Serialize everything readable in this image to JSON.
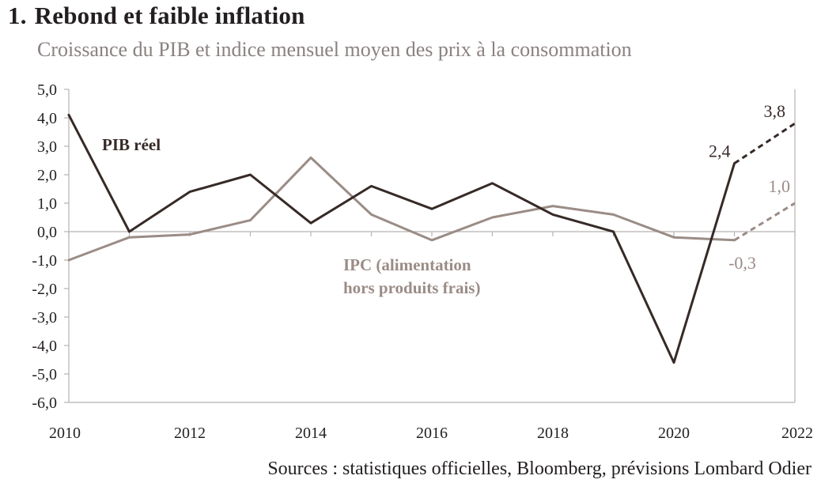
{
  "header": {
    "number": "1.",
    "title": "Rebond et faible inflation",
    "subtitle": "Croissance du PIB et indice mensuel moyen des prix à la consommation"
  },
  "source": "Sources : statistiques officielles, Bloomberg, prévisions Lombard Odier",
  "colors": {
    "pib": "#362a27",
    "ipc": "#9a8c86",
    "axis": "#b8b2b0",
    "text": "#231f20"
  },
  "chart_data": {
    "type": "line",
    "ylim": [
      -6,
      5
    ],
    "xlim": [
      2010,
      2022
    ],
    "y_ticks": [
      "5,0",
      "4,0",
      "3,0",
      "2,0",
      "1,0",
      "0,0",
      "-1,0",
      "-2,0",
      "-3,0",
      "-4,0",
      "-5,0",
      "-6,0"
    ],
    "y_tick_values": [
      5,
      4,
      3,
      2,
      1,
      0,
      -1,
      -2,
      -3,
      -4,
      -5,
      -6
    ],
    "x_ticks": [
      "2010",
      "2012",
      "2014",
      "2016",
      "2018",
      "2020",
      "2022"
    ],
    "x_tick_values": [
      2010,
      2012,
      2014,
      2016,
      2018,
      2020,
      2022
    ],
    "grid": false,
    "series": [
      {
        "name": "PIB réel",
        "color": "#362a27",
        "x": [
          2010,
          2011,
          2012,
          2013,
          2014,
          2015,
          2016,
          2017,
          2018,
          2019,
          2020,
          2021
        ],
        "values": [
          4.1,
          0.0,
          1.4,
          2.0,
          0.3,
          1.6,
          0.8,
          1.7,
          0.6,
          0.0,
          -4.6,
          2.4
        ],
        "forecast": {
          "x": [
            2021,
            2022
          ],
          "values": [
            2.4,
            3.8
          ]
        }
      },
      {
        "name": "IPC (alimentation hors produits frais)",
        "name_lines": [
          "IPC (alimentation",
          "hors produits frais)"
        ],
        "color": "#9a8c86",
        "x": [
          2010,
          2011,
          2012,
          2013,
          2014,
          2015,
          2016,
          2017,
          2018,
          2019,
          2020,
          2021
        ],
        "values": [
          -1.0,
          -0.2,
          -0.1,
          0.4,
          2.6,
          0.6,
          -0.3,
          0.5,
          0.9,
          0.6,
          -0.2,
          -0.3
        ],
        "forecast": {
          "x": [
            2021,
            2022
          ],
          "values": [
            -0.3,
            1.0
          ]
        }
      }
    ],
    "annotations": [
      {
        "text": "2,4",
        "series": 0,
        "x": 2021,
        "y": 2.4
      },
      {
        "text": "3,8",
        "series": 0,
        "x": 2022,
        "y": 3.8
      },
      {
        "text": "1,0",
        "series": 1,
        "x": 2022,
        "y": 1.0
      },
      {
        "text": "-0,3",
        "series": 1,
        "x": 2021,
        "y": -0.3
      }
    ]
  }
}
